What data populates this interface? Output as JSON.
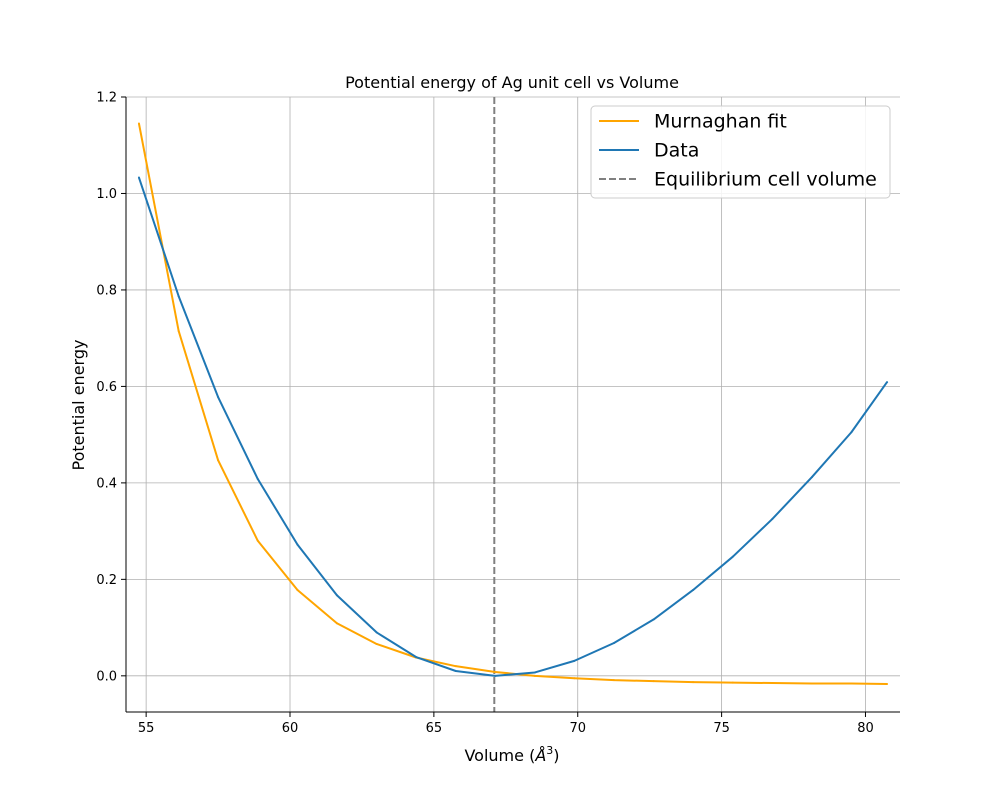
{
  "chart_data": {
    "type": "line",
    "title": "Potential energy of Ag unit cell vs Volume",
    "xlabel": "Volume (",
    "xlabel_unit": "Å",
    "xlabel_exp": "3",
    "xlabel_close": ")",
    "ylabel": "Potential energy",
    "xlim": [
      54.3,
      81.2
    ],
    "ylim": [
      -0.075,
      1.2
    ],
    "xticks": [
      55,
      60,
      65,
      70,
      75,
      80
    ],
    "xtick_labels": [
      "55",
      "60",
      "65",
      "70",
      "75",
      "80"
    ],
    "yticks": [
      0.0,
      0.2,
      0.4,
      0.6,
      0.8,
      1.0,
      1.2
    ],
    "ytick_labels": [
      "0.0",
      "0.2",
      "0.4",
      "0.6",
      "0.8",
      "1.0",
      "1.2"
    ],
    "grid": true,
    "legend_position": "top-right",
    "series": [
      {
        "name": "Murnaghan fit",
        "color": "#ffa500",
        "style": "solid",
        "x": [
          54.75,
          56.13,
          57.5,
          58.88,
          60.26,
          61.63,
          63.01,
          64.38,
          65.76,
          67.13,
          68.51,
          69.88,
          71.26,
          72.64,
          74.01,
          75.39,
          76.76,
          78.14,
          79.51,
          80.75
        ],
        "y": [
          1.145,
          0.715,
          0.447,
          0.28,
          0.178,
          0.109,
          0.066,
          0.038,
          0.02,
          0.008,
          0.0,
          -0.005,
          -0.009,
          -0.011,
          -0.013,
          -0.014,
          -0.015,
          -0.016,
          -0.016,
          -0.017
        ]
      },
      {
        "name": "Data",
        "color": "#1f77b4",
        "style": "solid",
        "x": [
          54.75,
          56.13,
          57.5,
          58.88,
          60.26,
          61.63,
          63.01,
          64.38,
          65.76,
          67.13,
          68.51,
          69.88,
          71.26,
          72.64,
          74.01,
          75.39,
          76.76,
          78.14,
          79.51,
          80.75
        ],
        "y": [
          1.033,
          0.787,
          0.578,
          0.408,
          0.272,
          0.167,
          0.09,
          0.039,
          0.01,
          0.0,
          0.007,
          0.031,
          0.068,
          0.117,
          0.178,
          0.247,
          0.325,
          0.412,
          0.505,
          0.609
        ]
      }
    ],
    "vlines": [
      {
        "name": "Equilibrium cell volume",
        "x": 67.1,
        "color": "#808080",
        "style": "dashed"
      }
    ]
  }
}
